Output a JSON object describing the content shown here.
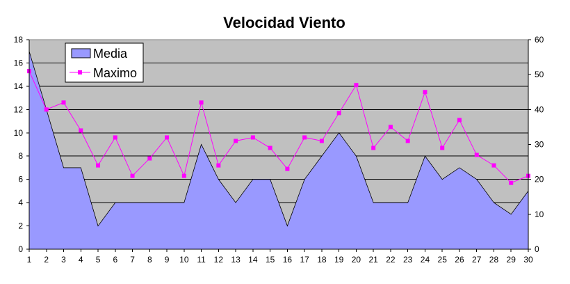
{
  "chart_data": {
    "type": "area",
    "title": "Velocidad Viento",
    "x": [
      1,
      2,
      3,
      4,
      5,
      6,
      7,
      8,
      9,
      10,
      11,
      12,
      13,
      14,
      15,
      16,
      17,
      18,
      19,
      20,
      21,
      22,
      23,
      24,
      25,
      26,
      27,
      28,
      29,
      30
    ],
    "ylim": [
      0,
      18
    ],
    "yticks": [
      0,
      2,
      4,
      6,
      8,
      10,
      12,
      14,
      16,
      18
    ],
    "y2lim": [
      0,
      60
    ],
    "y2ticks": [
      0,
      10,
      20,
      30,
      40,
      50,
      60
    ],
    "grid": true,
    "legend_position": "top-left",
    "plot_background": "#c0c0c0",
    "series": [
      {
        "name": "Media",
        "type": "area",
        "axis": "left",
        "color": "#9999ff",
        "values": [
          17,
          12,
          7,
          7,
          2,
          4,
          4,
          4,
          4,
          4,
          9,
          6,
          4,
          6,
          6,
          2,
          6,
          8,
          10,
          8,
          4,
          4,
          4,
          8,
          6,
          7,
          6,
          4,
          3,
          5
        ]
      },
      {
        "name": "Maximo",
        "type": "line",
        "axis": "right",
        "color": "#ff00ff",
        "marker": "square",
        "values": [
          51,
          40,
          42,
          34,
          24,
          32,
          21,
          26,
          32,
          21,
          42,
          24,
          31,
          32,
          29,
          23,
          32,
          31,
          39,
          47,
          29,
          35,
          31,
          45,
          29,
          37,
          27,
          24,
          19,
          21
        ]
      }
    ]
  }
}
